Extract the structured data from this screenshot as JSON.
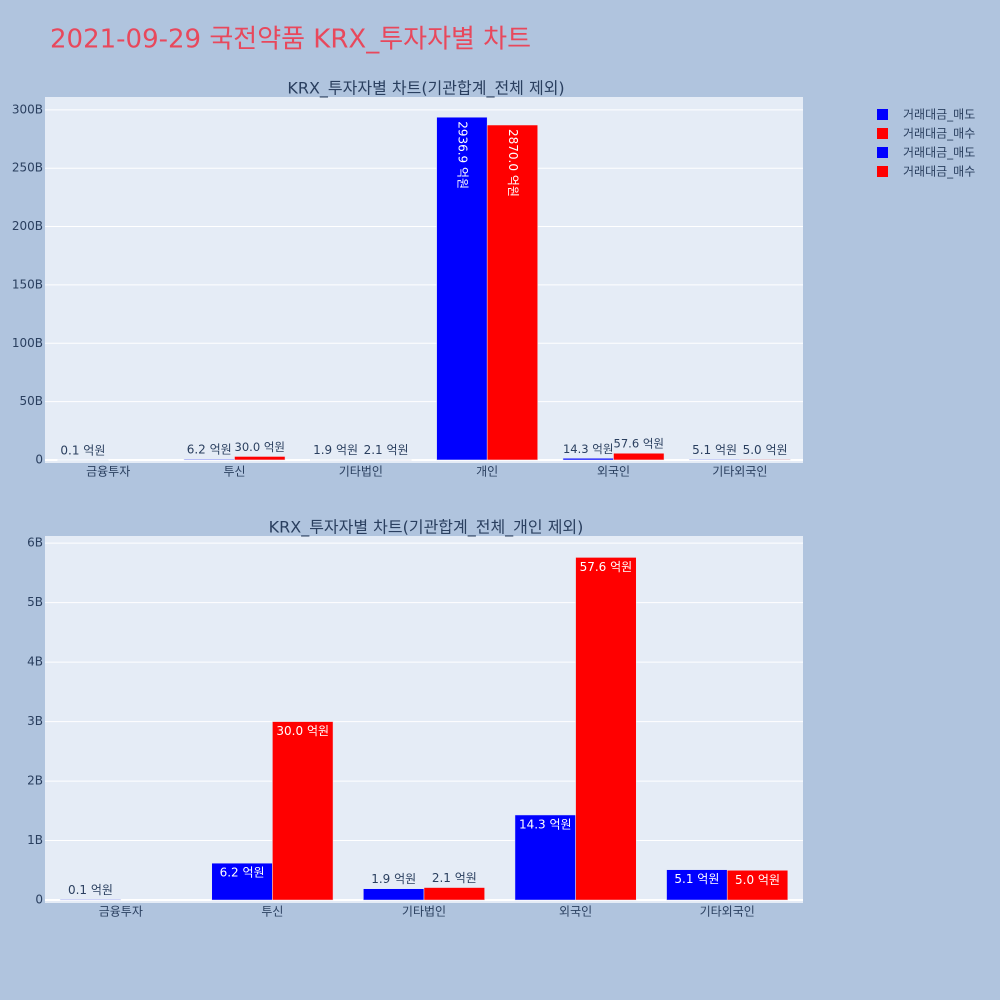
{
  "title": "2021-09-29 국전약품 KRX_투자자별 차트",
  "legend": "top-right",
  "chart_data": [
    {
      "type": "bar",
      "title": "KRX_투자자별 차트(기관합계_전체 제외)",
      "categories": [
        "금융투자",
        "투신",
        "기타법인",
        "개인",
        "외국인",
        "기타외국인"
      ],
      "series": [
        {
          "name": "거래대금_매도",
          "color": "#0000ff",
          "values": [
            10000000,
            620000000,
            190000000,
            293690000000,
            1430000000,
            510000000
          ],
          "value_labels": [
            "0.1 억원",
            "6.2 억원",
            "1.9 억원",
            "2936.9 억원",
            "14.3 억원",
            "5.1 억원"
          ]
        },
        {
          "name": "거래대금_매수",
          "color": "#ff0000",
          "values": [
            null,
            3000000000,
            210000000,
            287000000000,
            5760000000,
            500000000
          ],
          "value_labels": [
            null,
            "30.0 억원",
            "2.1 억원",
            "2870.0 억원",
            "57.6 억원",
            "5.0 억원"
          ]
        }
      ],
      "ylim": [
        -2600000000,
        311000000000
      ],
      "yticks": [
        0,
        {
          "value": 50000000000,
          "label": "50B"
        },
        {
          "value": 100000000000,
          "label": "100B"
        },
        {
          "value": 150000000000,
          "label": "150B"
        },
        {
          "value": 200000000000,
          "label": "200B"
        },
        {
          "value": 250000000000,
          "label": "250B"
        },
        {
          "value": 300000000000,
          "label": "300B"
        }
      ],
      "grid": true
    },
    {
      "type": "bar",
      "title": "KRX_투자자별 차트(기관합계_전체_개인 제외)",
      "categories": [
        "금융투자",
        "투신",
        "기타법인",
        "외국인",
        "기타외국인"
      ],
      "series": [
        {
          "name": "거래대금_매도",
          "color": "#0000ff",
          "values": [
            10000000,
            620000000,
            190000000,
            1430000000,
            510000000
          ],
          "value_labels": [
            "0.1 억원",
            "6.2 억원",
            "1.9 억원",
            "14.3 억원",
            "5.1 억원"
          ]
        },
        {
          "name": "거래대금_매수",
          "color": "#ff0000",
          "values": [
            null,
            3000000000,
            210000000,
            5760000000,
            500000000
          ],
          "value_labels": [
            null,
            "30.0 억원",
            "2.1 억원",
            "57.6 억원",
            "5.0 억원"
          ]
        }
      ],
      "ylim": [
        -50000000,
        6120000000
      ],
      "yticks": [
        0,
        {
          "value": 1000000000,
          "label": "1B"
        },
        {
          "value": 2000000000,
          "label": "2B"
        },
        {
          "value": 3000000000,
          "label": "3B"
        },
        {
          "value": 4000000000,
          "label": "4B"
        },
        {
          "value": 5000000000,
          "label": "5B"
        },
        {
          "value": 6000000000,
          "label": "6B"
        }
      ],
      "grid": true
    }
  ]
}
